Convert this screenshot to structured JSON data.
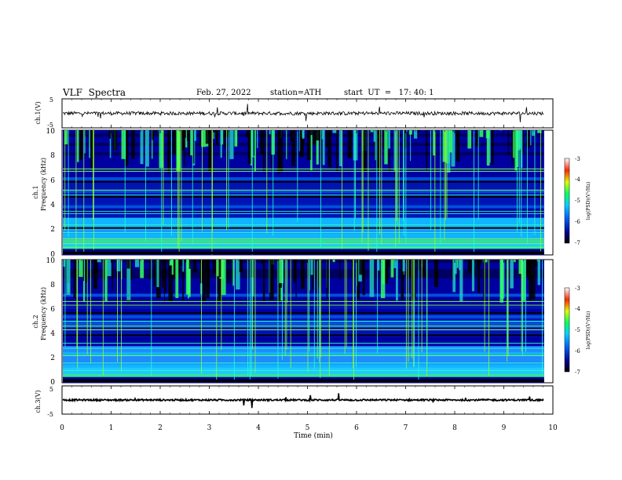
{
  "header": {
    "title": "VLF  Spectra",
    "date": "Feb. 27, 2022",
    "station": "station=ATH",
    "start": "start  UT  =   17: 40: 1"
  },
  "colors": {
    "trace": "#000000",
    "spectrogram_low": "#00007a",
    "spectrogram_mid": "#1e8cff",
    "spectrogram_high": "#32ff32"
  },
  "chart_data": [
    {
      "type": "line",
      "name": "ch1-waveform",
      "ylabel": "ch.1(V)",
      "ylim": [
        -5,
        5
      ],
      "yticks": [
        "5",
        "-5"
      ],
      "xlim": [
        0,
        10
      ],
      "baseline": 0,
      "noise_amplitude": 0.6
    },
    {
      "type": "heatmap",
      "name": "ch1-spectrogram",
      "ylabel_top": "ch.1",
      "ylabel": "Frequency  (kHz)",
      "ylim": [
        0,
        10
      ],
      "yticks": [
        "0",
        "2",
        "4",
        "6",
        "8",
        "10"
      ],
      "xlim": [
        0,
        9.8
      ],
      "colorbar": {
        "label": "log(PSD)(V²/Hz)",
        "range": [
          -7,
          -3
        ],
        "ticks": [
          "-3",
          "-4",
          "-5",
          "-6",
          "-7"
        ]
      }
    },
    {
      "type": "heatmap",
      "name": "ch2-spectrogram",
      "ylabel_top": "ch.2",
      "ylabel": "Frequency  (kHz)",
      "ylim": [
        0,
        10
      ],
      "yticks": [
        "0",
        "2",
        "4",
        "6",
        "8",
        "10"
      ],
      "xlim": [
        0,
        9.8
      ],
      "colorbar": {
        "label": "log(PSD)(V²/Hz)",
        "range": [
          -7,
          -3
        ],
        "ticks": [
          "-3",
          "-4",
          "-5",
          "-6",
          "-7"
        ]
      }
    },
    {
      "type": "line",
      "name": "ch3-waveform",
      "ylabel": "ch.3(V)",
      "ylim": [
        -5,
        5
      ],
      "yticks": [
        "5",
        "-5"
      ],
      "xlim": [
        0,
        10
      ],
      "baseline": 0,
      "noise_amplitude": 0.3
    }
  ],
  "x_axis": {
    "label": "Time  (min)",
    "ticks": [
      "0",
      "1",
      "2",
      "3",
      "4",
      "5",
      "6",
      "7",
      "8",
      "9",
      "10"
    ]
  }
}
